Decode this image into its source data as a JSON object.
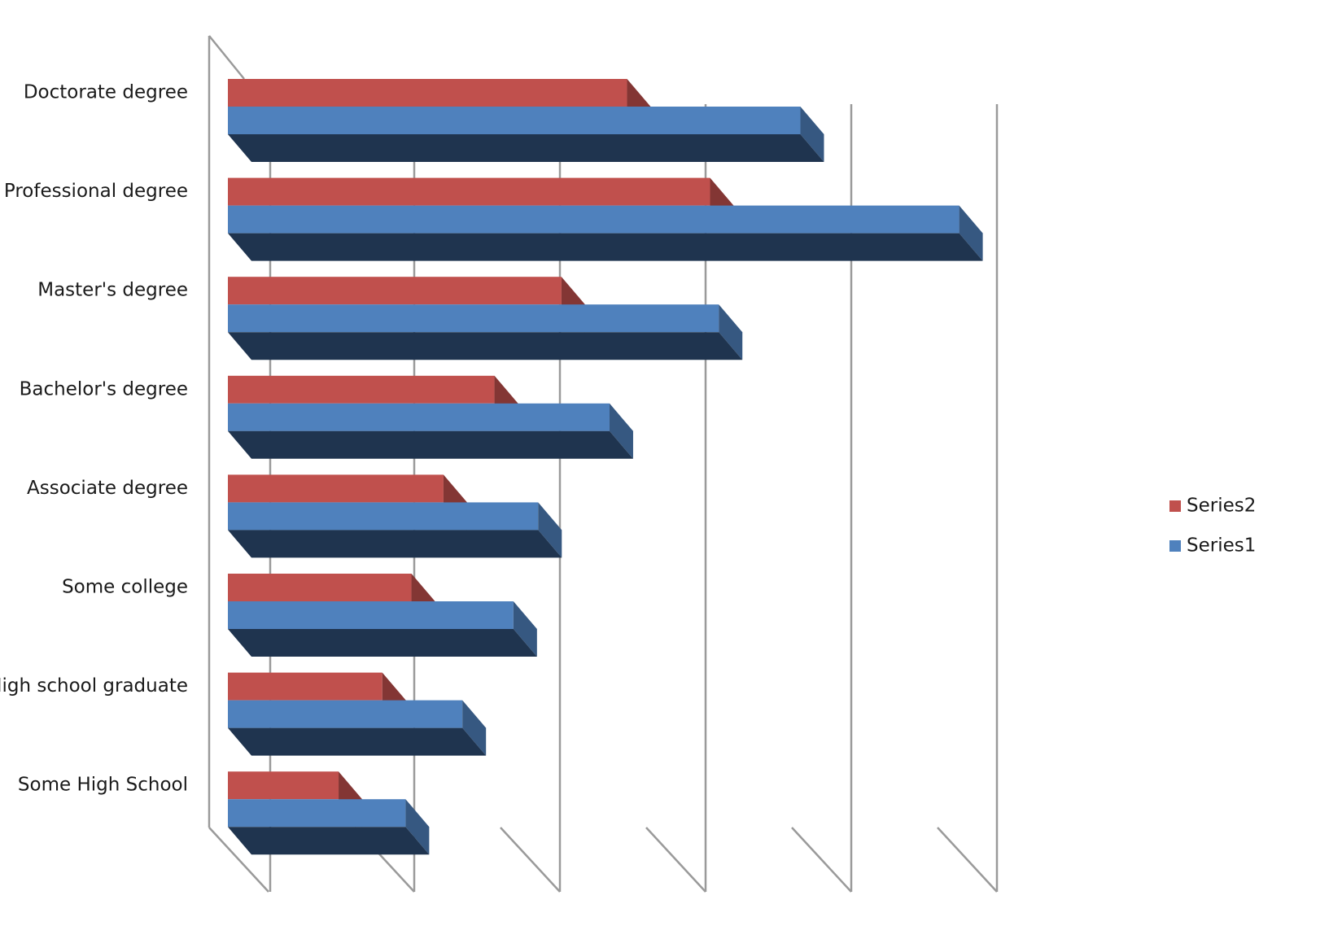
{
  "chart_data": {
    "type": "bar",
    "orientation": "horizontal",
    "three_d": true,
    "title": "",
    "xlabel": "",
    "ylabel": "",
    "categories": [
      "Doctorate degree",
      "Professional degree",
      "Master's degree",
      "Bachelor's degree",
      "Associate degree",
      "Some college",
      "High school graduate",
      "Some High School"
    ],
    "series": [
      {
        "name": "Series2",
        "color": "#c0504d",
        "values": [
          2.74,
          3.31,
          2.29,
          1.83,
          1.48,
          1.26,
          1.06,
          0.76
        ]
      },
      {
        "name": "Series1",
        "color": "#4f81bd",
        "values": [
          3.93,
          5.02,
          3.37,
          2.62,
          2.13,
          1.96,
          1.61,
          1.22
        ]
      }
    ],
    "xlim": [
      0,
      5
    ],
    "grid": true,
    "legend_position": "right",
    "legend_order": [
      "Series2",
      "Series1"
    ]
  }
}
